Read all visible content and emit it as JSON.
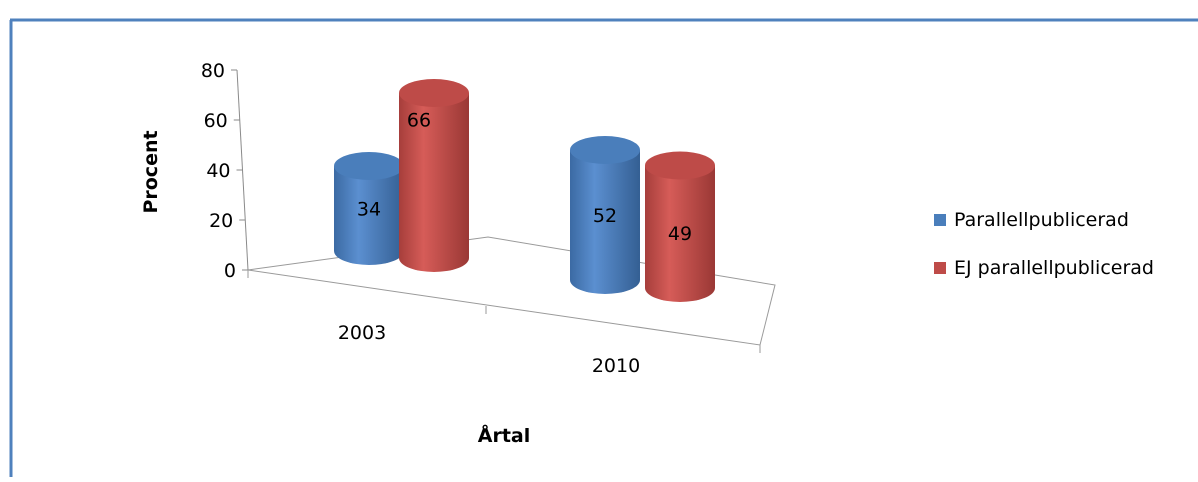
{
  "chart_data": {
    "type": "bar",
    "title": "",
    "xlabel": "Årtal",
    "ylabel": "Procent",
    "ylim": [
      0,
      80
    ],
    "yticks": [
      0,
      20,
      40,
      60,
      80
    ],
    "categories": [
      "2003",
      "2010"
    ],
    "series": [
      {
        "name": "Parallellpublicerad",
        "color": "#4a7ebb",
        "values": [
          34,
          52
        ]
      },
      {
        "name": "EJ parallellpublicerad",
        "color": "#be4b48",
        "values": [
          66,
          49
        ]
      }
    ],
    "data_labels": true,
    "legend": "right",
    "grid": false,
    "style": "3d-cylinder"
  }
}
